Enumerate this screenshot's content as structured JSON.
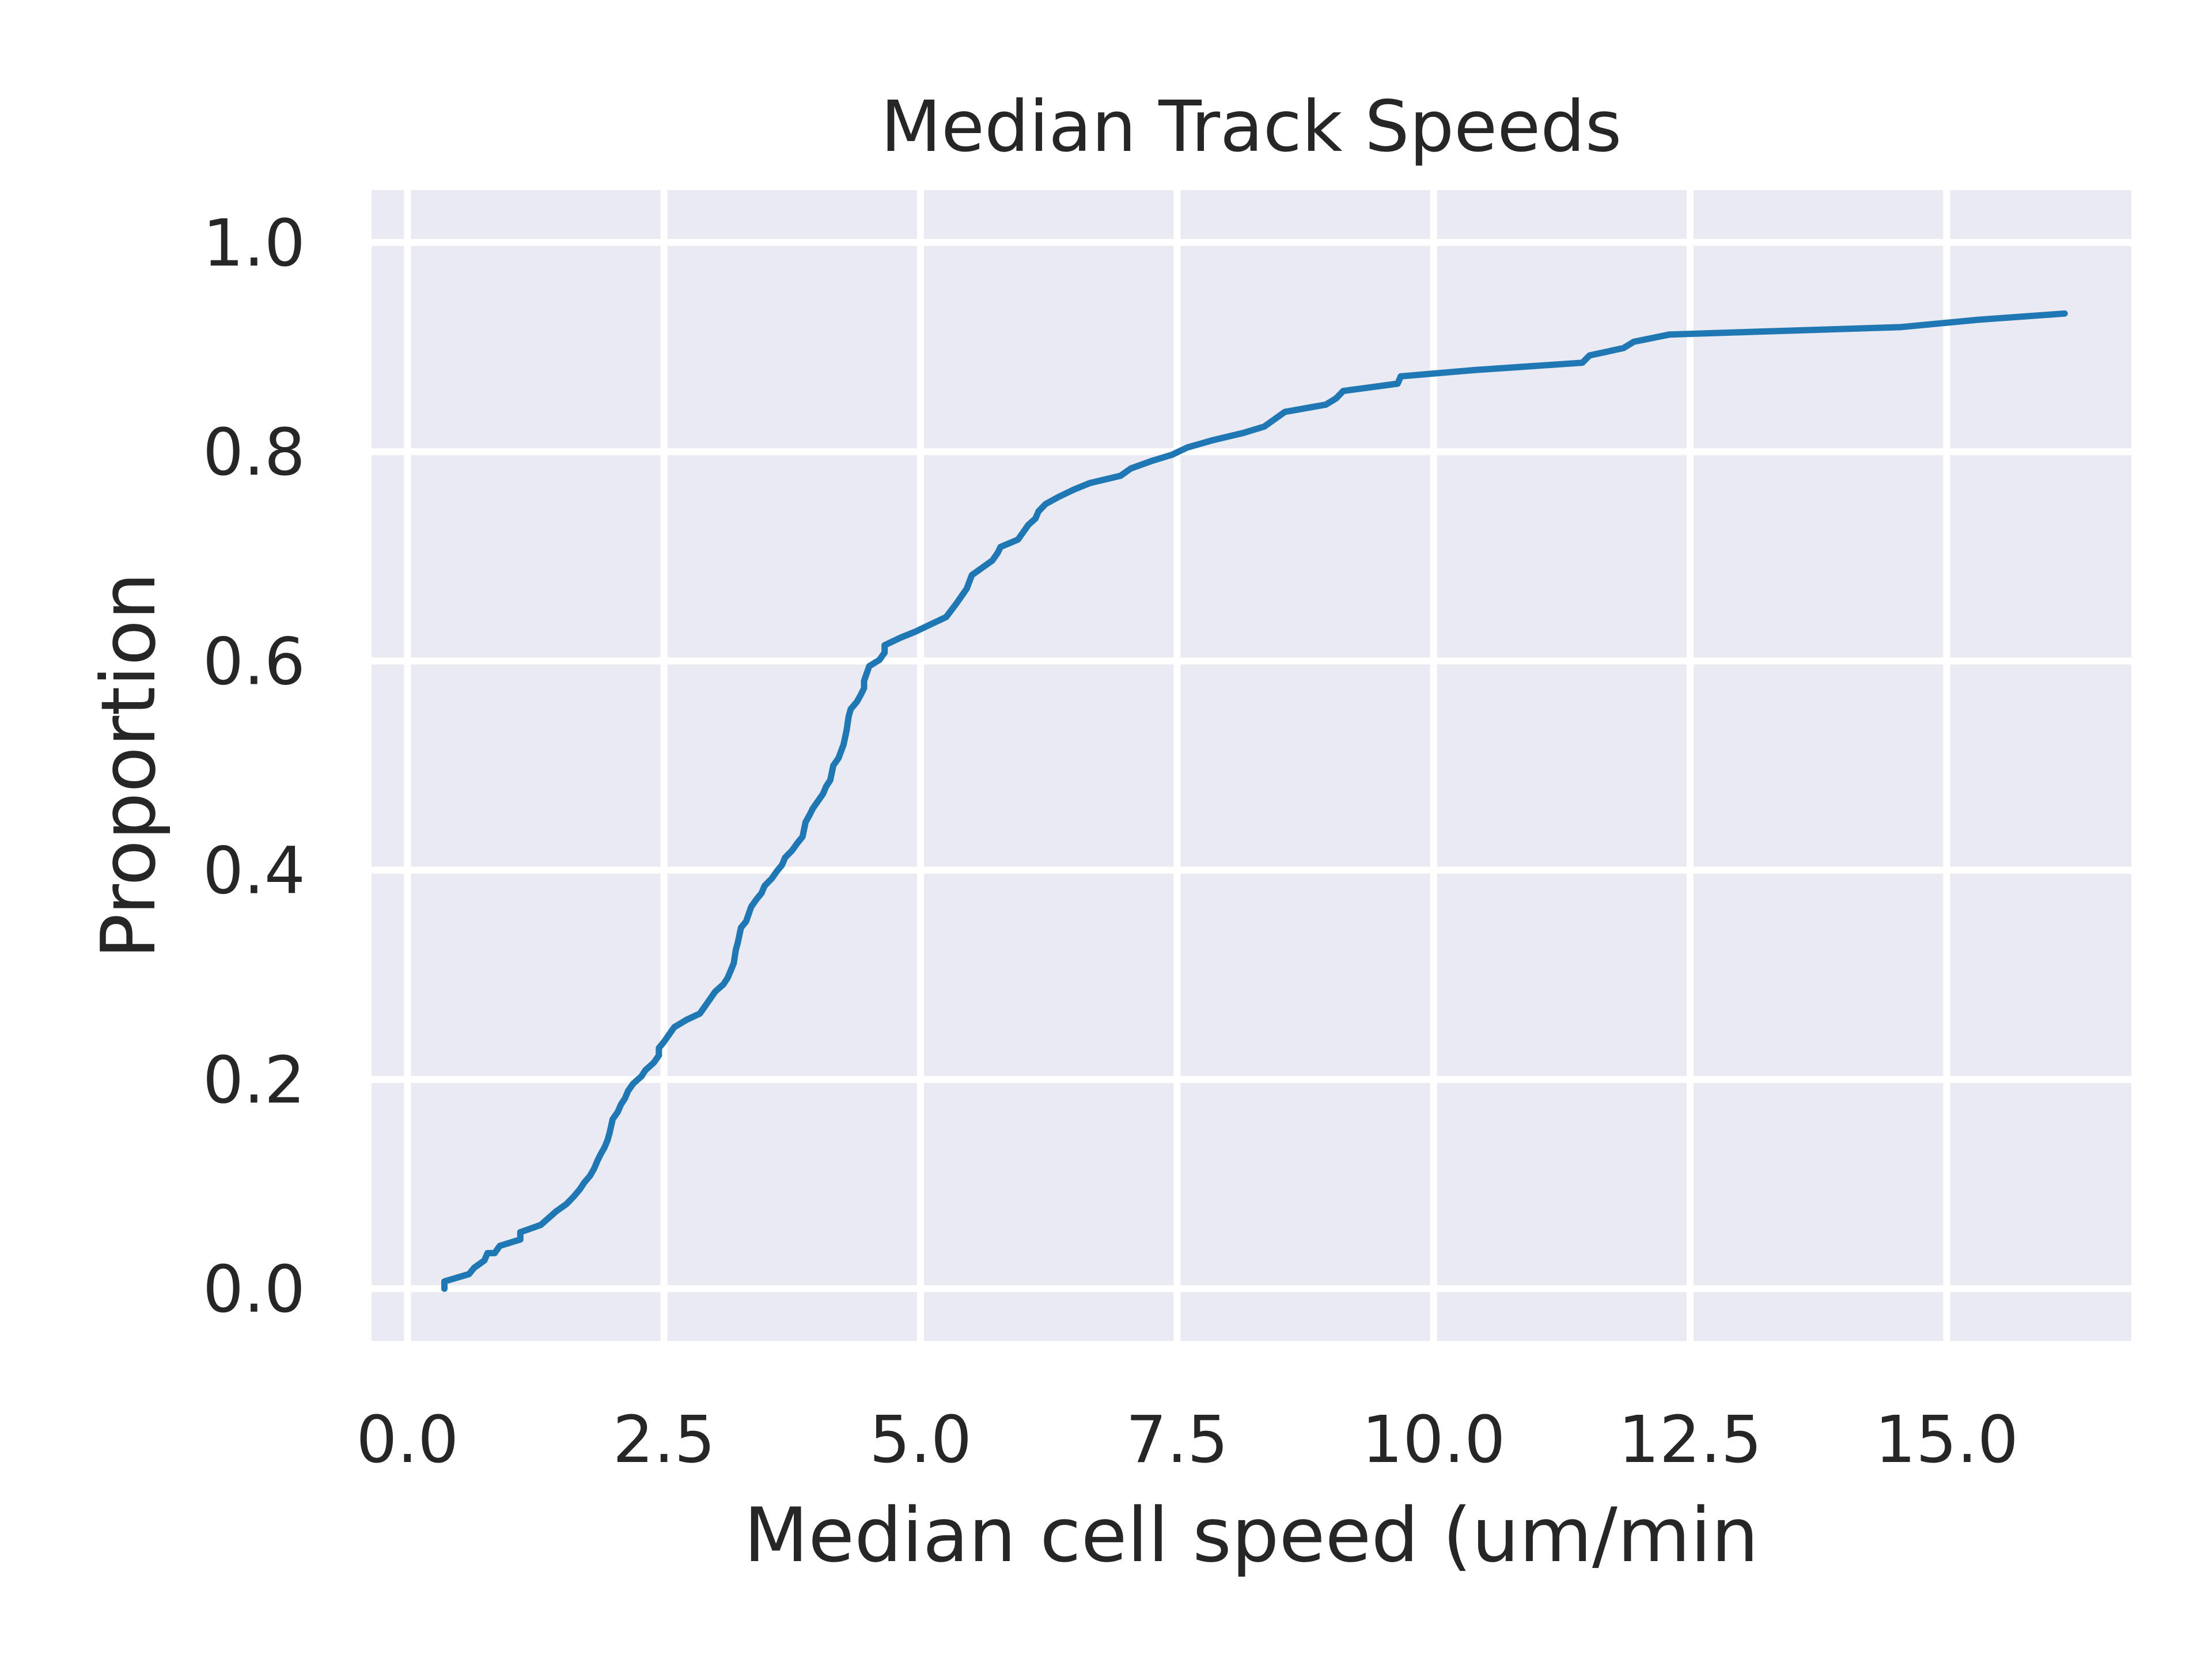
{
  "chart_data": {
    "type": "line",
    "title": "Median Track Speeds",
    "xlabel": "Median cell speed (um/min",
    "ylabel": "Proportion",
    "xlim": [
      -0.35,
      16.8
    ],
    "ylim": [
      -0.05,
      1.05
    ],
    "xticks": [
      0.0,
      2.5,
      5.0,
      7.5,
      10.0,
      12.5,
      15.0
    ],
    "xtick_labels": [
      "0.0",
      "2.5",
      "5.0",
      "7.5",
      "10.0",
      "12.5",
      "15.0"
    ],
    "yticks": [
      0.0,
      0.2,
      0.4,
      0.6,
      0.8,
      1.0
    ],
    "ytick_labels": [
      "0.0",
      "0.2",
      "0.4",
      "0.6",
      "0.8",
      "1.0"
    ],
    "grid": true,
    "background_color": "#eaeaf2",
    "series": [
      {
        "color": "#1f77b4",
        "x": [
          0.36,
          0.36,
          0.6,
          0.65,
          0.75,
          0.78,
          0.85,
          0.9,
          1.1,
          1.1,
          1.3,
          1.45,
          1.55,
          1.62,
          1.68,
          1.72,
          1.78,
          1.82,
          1.85,
          1.88,
          1.92,
          1.95,
          1.97,
          2.0,
          2.05,
          2.08,
          2.12,
          2.15,
          2.2,
          2.28,
          2.32,
          2.4,
          2.45,
          2.45,
          2.5,
          2.55,
          2.6,
          2.72,
          2.85,
          2.9,
          2.95,
          3.0,
          3.08,
          3.12,
          3.15,
          3.18,
          3.2,
          3.22,
          3.25,
          3.3,
          3.35,
          3.4,
          3.45,
          3.48,
          3.55,
          3.6,
          3.65,
          3.68,
          3.75,
          3.8,
          3.85,
          3.88,
          3.92,
          3.95,
          4.0,
          4.05,
          4.08,
          4.12,
          4.15,
          4.2,
          4.25,
          4.28,
          4.3,
          4.32,
          4.38,
          4.42,
          4.45,
          4.45,
          4.5,
          4.6,
          4.65,
          4.65,
          4.8,
          4.95,
          5.1,
          5.25,
          5.35,
          5.4,
          5.45,
          5.5,
          5.6,
          5.7,
          5.75,
          5.78,
          5.95,
          6.0,
          6.05,
          6.12,
          6.15,
          6.22,
          6.35,
          6.5,
          6.65,
          6.95,
          7.05,
          7.25,
          7.45,
          7.6,
          7.85,
          8.15,
          8.35,
          8.45,
          8.55,
          8.95,
          9.05,
          9.12,
          9.65,
          9.68,
          10.4,
          11.45,
          11.52,
          11.85,
          11.95,
          12.3,
          14.55,
          15.3,
          16.15
        ],
        "y": [
          0.0,
          0.007,
          0.014,
          0.02,
          0.027,
          0.034,
          0.034,
          0.041,
          0.047,
          0.054,
          0.061,
          0.074,
          0.081,
          0.088,
          0.095,
          0.101,
          0.108,
          0.115,
          0.122,
          0.128,
          0.135,
          0.142,
          0.149,
          0.162,
          0.169,
          0.176,
          0.182,
          0.189,
          0.196,
          0.203,
          0.209,
          0.216,
          0.223,
          0.23,
          0.236,
          0.243,
          0.25,
          0.257,
          0.263,
          0.27,
          0.277,
          0.284,
          0.291,
          0.297,
          0.304,
          0.311,
          0.324,
          0.331,
          0.345,
          0.351,
          0.365,
          0.372,
          0.378,
          0.385,
          0.392,
          0.399,
          0.405,
          0.412,
          0.419,
          0.426,
          0.432,
          0.446,
          0.453,
          0.459,
          0.466,
          0.473,
          0.48,
          0.486,
          0.5,
          0.507,
          0.52,
          0.534,
          0.547,
          0.554,
          0.561,
          0.568,
          0.574,
          0.581,
          0.595,
          0.601,
          0.608,
          0.615,
          0.622,
          0.628,
          0.635,
          0.642,
          0.655,
          0.662,
          0.669,
          0.682,
          0.689,
          0.696,
          0.703,
          0.709,
          0.716,
          0.723,
          0.73,
          0.736,
          0.743,
          0.75,
          0.757,
          0.764,
          0.77,
          0.777,
          0.784,
          0.791,
          0.797,
          0.804,
          0.811,
          0.818,
          0.824,
          0.831,
          0.838,
          0.845,
          0.851,
          0.858,
          0.865,
          0.872,
          0.878,
          0.885,
          0.892,
          0.899,
          0.905,
          0.912,
          0.919,
          0.926,
          0.932
        ]
      }
    ]
  }
}
